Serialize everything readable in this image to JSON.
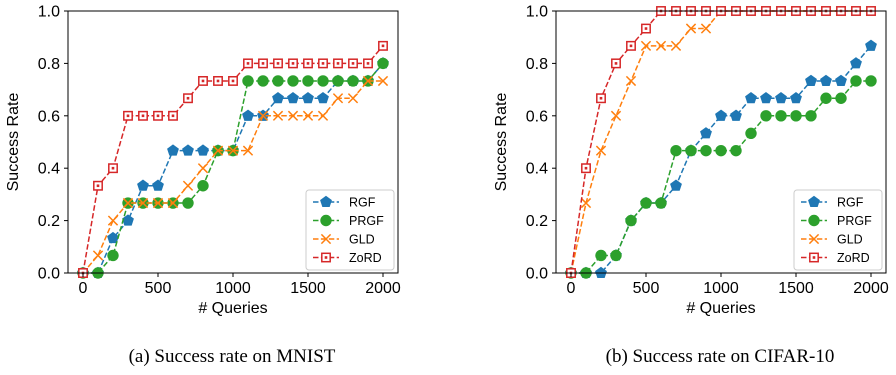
{
  "chart_data": [
    {
      "type": "line",
      "caption": "(a) Success rate on MNIST",
      "xlabel": "# Queries",
      "ylabel": "Success Rate",
      "xlim": [
        -100,
        2100
      ],
      "ylim": [
        0,
        1.0
      ],
      "xticks": [
        0,
        500,
        1000,
        1500,
        2000
      ],
      "yticks": [
        0.0,
        0.2,
        0.4,
        0.6,
        0.8,
        1.0
      ],
      "ytick_labels": [
        "0.0",
        "0.2",
        "0.4",
        "0.6",
        "0.8",
        "1.0"
      ],
      "grid": false,
      "legend_position": "bottom-right",
      "x": [
        0,
        100,
        200,
        300,
        400,
        500,
        600,
        700,
        800,
        900,
        1000,
        1100,
        1200,
        1300,
        1400,
        1500,
        1600,
        1700,
        1800,
        1900,
        2000
      ],
      "series": [
        {
          "name": "RGF",
          "color": "#1f77b4",
          "marker": "pentagon",
          "values": [
            0.0,
            0.0,
            0.133,
            0.2,
            0.333,
            0.333,
            0.467,
            0.467,
            0.467,
            0.467,
            0.467,
            0.6,
            0.6,
            0.667,
            0.667,
            0.667,
            0.667,
            0.733,
            0.733,
            0.733,
            0.8
          ]
        },
        {
          "name": "PRGF",
          "color": "#2ca02c",
          "marker": "circle",
          "values": [
            0.0,
            0.0,
            0.067,
            0.267,
            0.267,
            0.267,
            0.267,
            0.267,
            0.333,
            0.467,
            0.467,
            0.733,
            0.733,
            0.733,
            0.733,
            0.733,
            0.733,
            0.733,
            0.733,
            0.733,
            0.8
          ]
        },
        {
          "name": "GLD",
          "color": "#ff7f0e",
          "marker": "x",
          "values": [
            0.0,
            0.067,
            0.2,
            0.267,
            0.267,
            0.267,
            0.267,
            0.333,
            0.4,
            0.467,
            0.467,
            0.467,
            0.6,
            0.6,
            0.6,
            0.6,
            0.6,
            0.667,
            0.667,
            0.733,
            0.733
          ]
        },
        {
          "name": "ZoRD",
          "color": "#d62728",
          "marker": "square",
          "values": [
            0.0,
            0.333,
            0.4,
            0.6,
            0.6,
            0.6,
            0.6,
            0.667,
            0.733,
            0.733,
            0.733,
            0.8,
            0.8,
            0.8,
            0.8,
            0.8,
            0.8,
            0.8,
            0.8,
            0.8,
            0.867
          ]
        }
      ]
    },
    {
      "type": "line",
      "caption": "(b) Success rate on CIFAR-10",
      "xlabel": "# Queries",
      "ylabel": "Success Rate",
      "xlim": [
        -100,
        2100
      ],
      "ylim": [
        0,
        1.0
      ],
      "xticks": [
        0,
        500,
        1000,
        1500,
        2000
      ],
      "yticks": [
        0.0,
        0.2,
        0.4,
        0.6,
        0.8,
        1.0
      ],
      "ytick_labels": [
        "0.0",
        "0.2",
        "0.4",
        "0.6",
        "0.8",
        "1.0"
      ],
      "grid": false,
      "legend_position": "bottom-right",
      "x": [
        0,
        100,
        200,
        300,
        400,
        500,
        600,
        700,
        800,
        900,
        1000,
        1100,
        1200,
        1300,
        1400,
        1500,
        1600,
        1700,
        1800,
        1900,
        2000
      ],
      "series": [
        {
          "name": "RGF",
          "color": "#1f77b4",
          "marker": "pentagon",
          "values": [
            0.0,
            0.0,
            0.0,
            0.067,
            0.2,
            0.267,
            0.267,
            0.333,
            0.467,
            0.533,
            0.6,
            0.6,
            0.667,
            0.667,
            0.667,
            0.667,
            0.733,
            0.733,
            0.733,
            0.8,
            0.867
          ]
        },
        {
          "name": "PRGF",
          "color": "#2ca02c",
          "marker": "circle",
          "values": [
            0.0,
            0.0,
            0.067,
            0.067,
            0.2,
            0.267,
            0.267,
            0.467,
            0.467,
            0.467,
            0.467,
            0.467,
            0.533,
            0.6,
            0.6,
            0.6,
            0.6,
            0.667,
            0.667,
            0.733,
            0.733
          ]
        },
        {
          "name": "GLD",
          "color": "#ff7f0e",
          "marker": "x",
          "values": [
            0.0,
            0.267,
            0.467,
            0.6,
            0.733,
            0.867,
            0.867,
            0.867,
            0.933,
            0.933,
            1.0,
            1.0,
            1.0,
            1.0,
            1.0,
            1.0,
            1.0,
            1.0,
            1.0,
            1.0,
            1.0
          ]
        },
        {
          "name": "ZoRD",
          "color": "#d62728",
          "marker": "square",
          "values": [
            0.0,
            0.4,
            0.667,
            0.8,
            0.867,
            0.933,
            1.0,
            1.0,
            1.0,
            1.0,
            1.0,
            1.0,
            1.0,
            1.0,
            1.0,
            1.0,
            1.0,
            1.0,
            1.0,
            1.0,
            1.0
          ]
        }
      ]
    }
  ]
}
